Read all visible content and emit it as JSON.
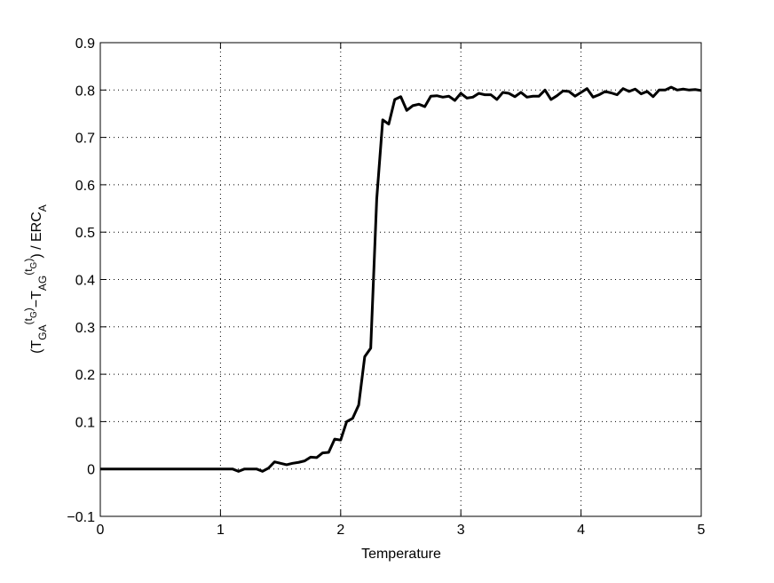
{
  "chart_data": {
    "type": "line",
    "xlabel": "Temperature",
    "ylabel_parts": [
      "(T",
      "GA",
      "(t",
      "G",
      ")",
      "−T",
      "AG",
      "(t",
      "G",
      ")",
      ") / ERC",
      "A"
    ],
    "x": [
      0,
      0.05,
      0.1,
      0.15,
      0.2,
      0.25,
      0.3,
      0.35,
      0.4,
      0.45,
      0.5,
      0.55,
      0.6,
      0.65,
      0.7,
      0.75,
      0.8,
      0.85,
      0.9,
      0.95,
      1,
      1.05,
      1.1,
      1.15,
      1.2,
      1.25,
      1.3,
      1.35,
      1.4,
      1.45,
      1.5,
      1.55,
      1.6,
      1.65,
      1.7,
      1.75,
      1.8,
      1.85,
      1.9,
      1.95,
      2,
      2.05,
      2.1,
      2.15,
      2.2,
      2.25,
      2.3,
      2.35,
      2.4,
      2.45,
      2.5,
      2.55,
      2.6,
      2.65,
      2.7,
      2.75,
      2.8,
      2.85,
      2.9,
      2.95,
      3,
      3.05,
      3.1,
      3.15,
      3.2,
      3.25,
      3.3,
      3.35,
      3.4,
      3.45,
      3.5,
      3.55,
      3.6,
      3.65,
      3.7,
      3.75,
      3.8,
      3.85,
      3.9,
      3.95,
      4,
      4.05,
      4.1,
      4.15,
      4.2,
      4.25,
      4.3,
      4.35,
      4.4,
      4.45,
      4.5,
      4.55,
      4.6,
      4.65,
      4.7,
      4.75,
      4.8,
      4.85,
      4.9,
      4.95,
      5
    ],
    "values": [
      0,
      0,
      0,
      0,
      0,
      0,
      0,
      0,
      0,
      0,
      0,
      0,
      0,
      0,
      0,
      0,
      0,
      0,
      0,
      0,
      0,
      0,
      0,
      -0.005,
      0,
      0,
      0,
      -0.005,
      0.002,
      0.015,
      0.012,
      0.009,
      0.012,
      0.014,
      0.017,
      0.025,
      0.024,
      0.034,
      0.035,
      0.063,
      0.061,
      0.1,
      0.107,
      0.135,
      0.237,
      0.255,
      0.57,
      0.737,
      0.728,
      0.78,
      0.786,
      0.757,
      0.767,
      0.77,
      0.765,
      0.787,
      0.788,
      0.785,
      0.787,
      0.778,
      0.793,
      0.783,
      0.785,
      0.793,
      0.79,
      0.79,
      0.78,
      0.795,
      0.793,
      0.786,
      0.795,
      0.785,
      0.787,
      0.787,
      0.8,
      0.78,
      0.788,
      0.798,
      0.797,
      0.787,
      0.795,
      0.803,
      0.785,
      0.79,
      0.797,
      0.794,
      0.79,
      0.803,
      0.797,
      0.802,
      0.792,
      0.797,
      0.786,
      0.8,
      0.8,
      0.806,
      0.8,
      0.802,
      0.8,
      0.801,
      0.799
    ],
    "color": "#000000",
    "xlim": [
      0,
      5
    ],
    "xticks": [
      0,
      1,
      2,
      3,
      4,
      5
    ],
    "ylim": [
      -0.1,
      0.9
    ],
    "yticks": [
      {
        "value": -0.1,
        "label": "−0.1"
      },
      0,
      0.1,
      0.2,
      0.3,
      0.4,
      0.5,
      0.6,
      0.7,
      0.8,
      0.9
    ],
    "grid": true
  }
}
